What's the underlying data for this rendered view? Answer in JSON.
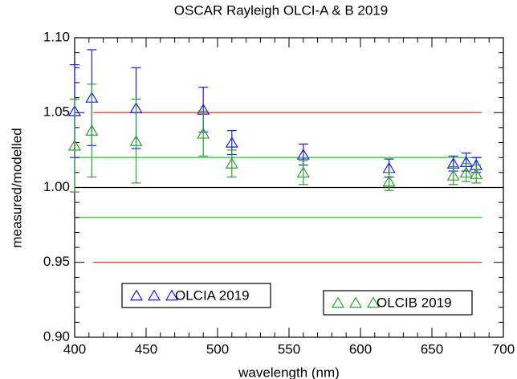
{
  "chart_data": {
    "type": "scatter",
    "title": "OSCAR Rayleigh OLCI-A & B 2019",
    "x_label": "wavelength (nm)",
    "y_label": "measured/modelled",
    "xlim": [
      400,
      700
    ],
    "ylim": [
      0.9,
      1.1
    ],
    "xticks": [
      400,
      450,
      500,
      550,
      600,
      650,
      700
    ],
    "yticks": [
      {
        "value": 0.9,
        "label": "0.90"
      },
      0.95,
      {
        "value": 1.0,
        "label": "1.00"
      },
      1.05,
      {
        "value": 1.1,
        "label": "1.10"
      }
    ],
    "reference_lines": [
      {
        "value": 1.05,
        "color": "#e0301e",
        "x": [
          413,
          685
        ]
      },
      {
        "value": 0.95,
        "color": "#e0301e",
        "x": [
          413,
          685
        ]
      },
      {
        "value": 1.02,
        "color": "#33cc33",
        "x": [
          400,
          685
        ]
      },
      {
        "value": 0.98,
        "color": "#33cc33",
        "x": [
          400,
          685
        ]
      },
      {
        "value": 1.0,
        "color": "#000000",
        "x": [
          400,
          700
        ]
      }
    ],
    "series": [
      {
        "name": "OLCIA 2019",
        "color": "#1a1aff",
        "x": [
          400,
          412,
          443,
          490,
          510,
          560,
          620,
          665,
          674,
          681
        ],
        "values": [
          1.051,
          1.06,
          1.053,
          1.052,
          1.03,
          1.022,
          1.013,
          1.016,
          1.017,
          1.015
        ],
        "errors": [
          0.031,
          0.032,
          0.027,
          0.015,
          0.008,
          0.007,
          0.006,
          0.005,
          0.006,
          0.005
        ]
      },
      {
        "name": "OLCIB 2019",
        "color": "#2e9e2e",
        "x": [
          400,
          412,
          443,
          490,
          510,
          560,
          620,
          665,
          674,
          681
        ],
        "values": [
          1.028,
          1.038,
          1.031,
          1.036,
          1.016,
          1.01,
          1.004,
          1.008,
          1.01,
          1.009
        ],
        "errors": [
          0.031,
          0.031,
          0.028,
          0.015,
          0.009,
          0.008,
          0.006,
          0.006,
          0.006,
          0.006
        ]
      }
    ]
  }
}
